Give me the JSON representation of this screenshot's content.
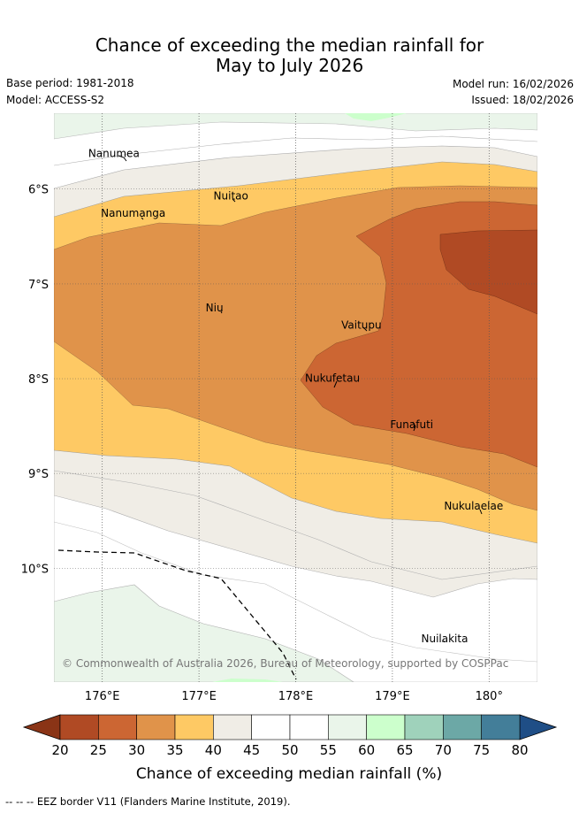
{
  "title": {
    "line1": "Chance of exceeding the median rainfall for",
    "line2": "May to July 2026"
  },
  "meta": {
    "base_period": "Base period: 1981-2018",
    "model": "Model: ACCESS-S2",
    "model_run": "Model run: 16/02/2026",
    "issued": "Issued: 18/02/2026"
  },
  "map": {
    "lon_range": [
      175.5,
      180.5
    ],
    "lat_range": [
      -11.2,
      -5.2
    ],
    "lon_ticks": [
      {
        "value": 176,
        "label": "176°E"
      },
      {
        "value": 177,
        "label": "177°E"
      },
      {
        "value": 178,
        "label": "178°E"
      },
      {
        "value": 179,
        "label": "179°E"
      },
      {
        "value": 180,
        "label": "180°"
      }
    ],
    "lat_ticks": [
      {
        "value": -6,
        "label": "6°S"
      },
      {
        "value": -7,
        "label": "7°S"
      },
      {
        "value": -8,
        "label": "8°S"
      },
      {
        "value": -9,
        "label": "9°S"
      },
      {
        "value": -10,
        "label": "10°S"
      }
    ],
    "places": [
      {
        "name": "Nanumea",
        "lon": 176.12,
        "lat": -5.66
      },
      {
        "name": "Nanumanga",
        "lon": 176.32,
        "lat": -6.29
      },
      {
        "name": "Nuitao",
        "lon": 177.33,
        "lat": -6.11
      },
      {
        "name": "Niu",
        "lon": 177.16,
        "lat": -7.29
      },
      {
        "name": "Vaitupu",
        "lon": 178.68,
        "lat": -7.47
      },
      {
        "name": "Nukufetau",
        "lon": 178.38,
        "lat": -8.03
      },
      {
        "name": "Funafuti",
        "lon": 179.2,
        "lat": -8.52
      },
      {
        "name": "Nukulaelae",
        "lon": 179.84,
        "lat": -9.38
      },
      {
        "name": "Nuilakita",
        "lon": 179.54,
        "lat": -10.78
      }
    ],
    "copyright": "© Commonwealth of Australia 2026, Bureau of Meteorology, supported by COSPPac"
  },
  "colorbar": {
    "label": "Chance of exceeding median rainfall (%)",
    "ticks": [
      "20",
      "25",
      "30",
      "35",
      "40",
      "45",
      "50",
      "55",
      "60",
      "65",
      "70",
      "75",
      "80"
    ],
    "under_color": "#8a3416",
    "over_color": "#1f4e86",
    "colors": [
      "#b04a24",
      "#cc6633",
      "#e0934a",
      "#fec964",
      "#f0ede6",
      "#ffffff",
      "#ffffff",
      "#eaf5ea",
      "#ccffcc",
      "#9fd2bb",
      "#6ca8a6",
      "#437e99"
    ]
  },
  "footnote": "--  --  -- EEZ border V11 (Flanders Marine Institute, 2019)."
}
